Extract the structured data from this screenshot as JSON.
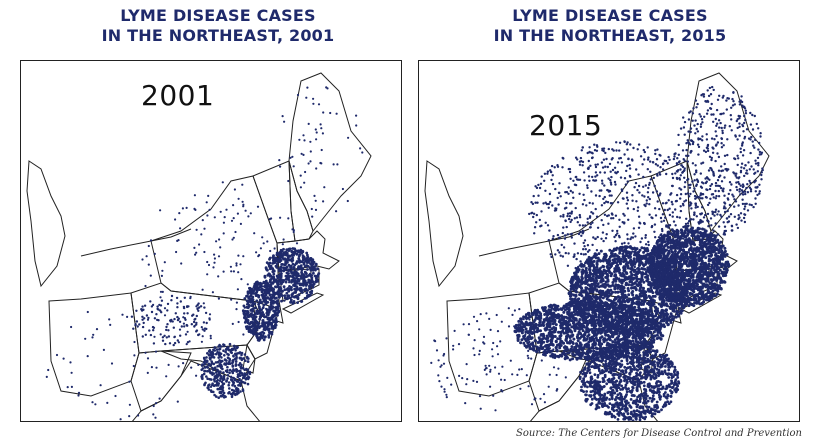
{
  "panels": [
    {
      "title_line1": "LYME DISEASE CASES",
      "title_line2": "IN THE NORTHEAST, 2001",
      "year": "2001"
    },
    {
      "title_line1": "LYME DISEASE CASES",
      "title_line2": "IN THE NORTHEAST, 2015",
      "year": "2015"
    }
  ],
  "source": "Source: The Centers for Disease Control and Prevention",
  "colors": {
    "title": "#1f2a6b",
    "case_dots": "#1f2a6b",
    "state_borders": "#222222"
  },
  "legend": null
}
